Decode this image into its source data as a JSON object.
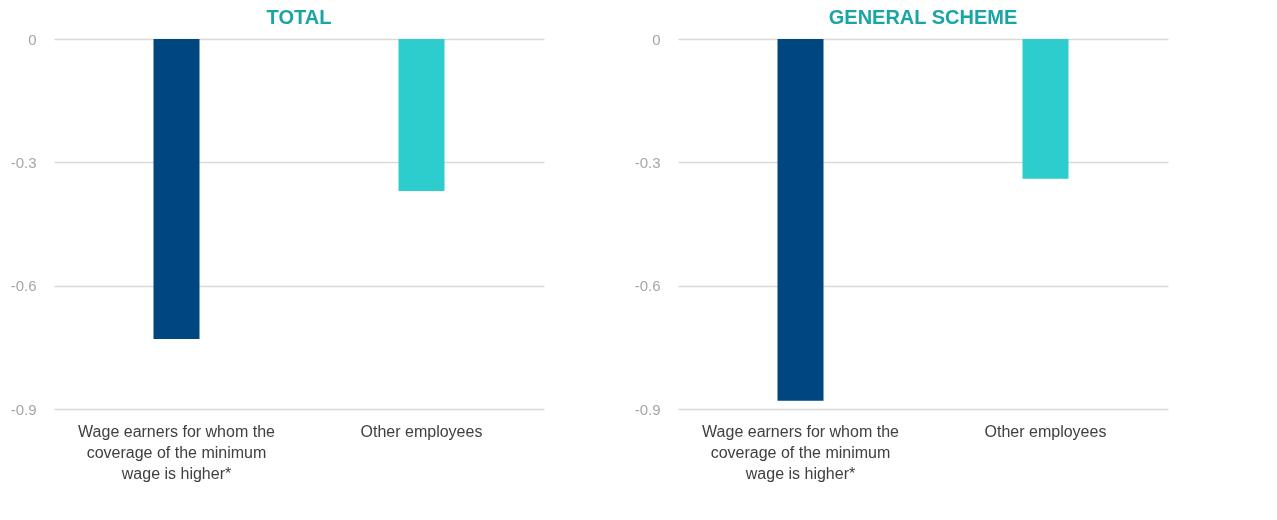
{
  "chart_data": [
    {
      "type": "bar",
      "title": "TOTAL",
      "categories": [
        "Wage earners for whom the coverage of the minimum wage is higher*",
        "Other employees"
      ],
      "values": [
        -0.73,
        -0.37
      ],
      "colors": [
        "#00467f",
        "#2ecdcd"
      ],
      "ylim": [
        -0.9,
        0
      ],
      "yticks": [
        0,
        -0.3,
        -0.6,
        -0.9
      ],
      "grid": "y"
    },
    {
      "type": "bar",
      "title": "GENERAL SCHEME",
      "categories": [
        "Wage earners for whom the coverage of the minimum wage is higher*",
        "Other employees"
      ],
      "values": [
        -0.88,
        -0.34
      ],
      "colors": [
        "#00467f",
        "#2ecdcd"
      ],
      "ylim": [
        -0.9,
        0
      ],
      "yticks": [
        0,
        -0.3,
        -0.6,
        -0.9
      ],
      "grid": "y"
    }
  ]
}
